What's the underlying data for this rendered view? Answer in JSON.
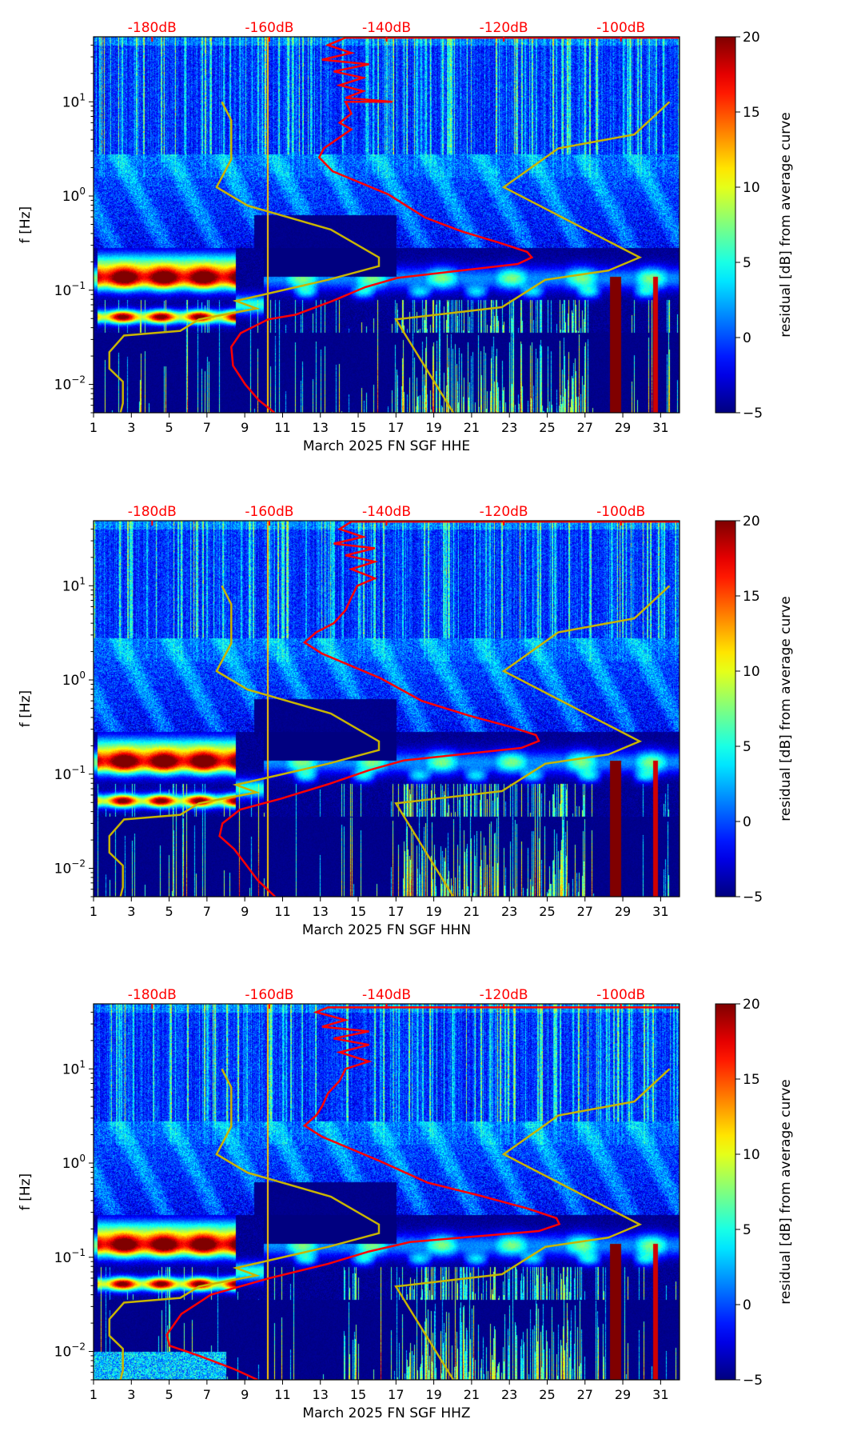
{
  "chart_data": [
    {
      "type": "heatmap",
      "xlabel": "March 2025 FN SGF  HHE",
      "ylabel": "f [Hz]",
      "colorbar_label": "residual [dB] from average curve",
      "x_ticks": [
        "1",
        "3",
        "5",
        "7",
        "9",
        "11",
        "13",
        "15",
        "17",
        "19",
        "21",
        "23",
        "25",
        "27",
        "29",
        "31"
      ],
      "xlim": [
        1,
        32
      ],
      "ylim_hz": [
        0.005,
        49
      ],
      "y_ticks": [
        {
          "base": "10",
          "exp": "1"
        },
        {
          "base": "10",
          "exp": "0"
        },
        {
          "base": "10",
          "exp": "−1"
        },
        {
          "base": "10",
          "exp": "−2"
        }
      ],
      "top_axis_ticks": [
        "-180dB",
        "-160dB",
        "-140dB",
        "-120dB",
        "-100dB"
      ],
      "top_axis_range_db": [
        -190,
        -90
      ],
      "colorbar_ticks": [
        "20",
        "15",
        "10",
        "5",
        "0",
        "−5"
      ],
      "colorbar_range": [
        -5,
        20
      ],
      "red_curve": [
        [
          -90,
          48
        ],
        [
          -147,
          48
        ],
        [
          -150,
          40
        ],
        [
          -146,
          33
        ],
        [
          -151,
          28
        ],
        [
          -143,
          25
        ],
        [
          -149,
          21
        ],
        [
          -144,
          18
        ],
        [
          -148,
          15
        ],
        [
          -144,
          13
        ],
        [
          -147,
          11
        ],
        [
          -139,
          10
        ],
        [
          -147,
          10
        ],
        [
          -146,
          7.5
        ],
        [
          -148,
          6
        ],
        [
          -146,
          5.1
        ],
        [
          -150.7,
          3.2
        ],
        [
          -151.5,
          2.57
        ],
        [
          -149.2,
          1.83
        ],
        [
          -139.7,
          1.04
        ],
        [
          -133.4,
          0.59
        ],
        [
          -127.1,
          0.42
        ],
        [
          -120.8,
          0.32
        ],
        [
          -116,
          0.255
        ],
        [
          -115.2,
          0.223
        ],
        [
          -117.6,
          0.19
        ],
        [
          -138.1,
          0.135
        ],
        [
          -143.6,
          0.108
        ],
        [
          -149.2,
          0.077
        ],
        [
          -155.5,
          0.055
        ],
        [
          -160.2,
          0.049
        ],
        [
          -164.9,
          0.035
        ],
        [
          -166.5,
          0.025
        ],
        [
          -166.2,
          0.0158
        ],
        [
          -164.1,
          0.01
        ],
        [
          -161.8,
          0.0068
        ],
        [
          -159.1,
          0.005
        ]
      ]
    },
    {
      "type": "heatmap",
      "xlabel": "March 2025 FN SGF  HHN",
      "ylabel": "f [Hz]",
      "colorbar_label": "residual [dB] from average curve",
      "x_ticks": [
        "1",
        "3",
        "5",
        "7",
        "9",
        "11",
        "13",
        "15",
        "17",
        "19",
        "21",
        "23",
        "25",
        "27",
        "29",
        "31"
      ],
      "xlim": [
        1,
        32
      ],
      "ylim_hz": [
        0.005,
        49
      ],
      "y_ticks": [
        {
          "base": "10",
          "exp": "1"
        },
        {
          "base": "10",
          "exp": "0"
        },
        {
          "base": "10",
          "exp": "−1"
        },
        {
          "base": "10",
          "exp": "−2"
        }
      ],
      "top_axis_ticks": [
        "-180dB",
        "-160dB",
        "-140dB",
        "-120dB",
        "-100dB"
      ],
      "top_axis_range_db": [
        -190,
        -90
      ],
      "colorbar_ticks": [
        "20",
        "15",
        "10",
        "5",
        "0",
        "−5"
      ],
      "colorbar_range": [
        -5,
        20
      ],
      "red_curve": [
        [
          -90,
          48
        ],
        [
          -146,
          48
        ],
        [
          -148,
          40
        ],
        [
          -144,
          33
        ],
        [
          -149,
          28
        ],
        [
          -142,
          25
        ],
        [
          -147,
          21
        ],
        [
          -142,
          18
        ],
        [
          -146,
          15
        ],
        [
          -142,
          12
        ],
        [
          -145,
          10
        ],
        [
          -146,
          7.5
        ],
        [
          -147,
          5.5
        ],
        [
          -149,
          4
        ],
        [
          -152,
          3.2
        ],
        [
          -154,
          2.5
        ],
        [
          -151,
          1.9
        ],
        [
          -141,
          1.04
        ],
        [
          -134,
          0.6
        ],
        [
          -126,
          0.42
        ],
        [
          -119,
          0.32
        ],
        [
          -114.5,
          0.26
        ],
        [
          -114,
          0.225
        ],
        [
          -117,
          0.19
        ],
        [
          -137,
          0.14
        ],
        [
          -143,
          0.11
        ],
        [
          -150,
          0.078
        ],
        [
          -158,
          0.055
        ],
        [
          -165,
          0.042
        ],
        [
          -168,
          0.03
        ],
        [
          -168.5,
          0.022
        ],
        [
          -166,
          0.016
        ],
        [
          -164,
          0.011
        ],
        [
          -162,
          0.0075
        ],
        [
          -159,
          0.005
        ]
      ]
    },
    {
      "type": "heatmap",
      "xlabel": "March 2025 FN SGF  HHZ",
      "ylabel": "f [Hz]",
      "colorbar_label": "residual [dB] from average curve",
      "x_ticks": [
        "1",
        "3",
        "5",
        "7",
        "9",
        "11",
        "13",
        "15",
        "17",
        "19",
        "21",
        "23",
        "25",
        "27",
        "29",
        "31"
      ],
      "xlim": [
        1,
        32
      ],
      "ylim_hz": [
        0.005,
        49
      ],
      "y_ticks": [
        {
          "base": "10",
          "exp": "1"
        },
        {
          "base": "10",
          "exp": "0"
        },
        {
          "base": "10",
          "exp": "−1"
        },
        {
          "base": "10",
          "exp": "−2"
        }
      ],
      "top_axis_ticks": [
        "-180dB",
        "-160dB",
        "-140dB",
        "-120dB",
        "-100dB"
      ],
      "top_axis_range_db": [
        -190,
        -90
      ],
      "colorbar_ticks": [
        "20",
        "15",
        "10",
        "5",
        "0",
        "−5"
      ],
      "colorbar_range": [
        -5,
        20
      ],
      "red_curve": [
        [
          -90,
          45
        ],
        [
          -150,
          45
        ],
        [
          -152,
          40
        ],
        [
          -147,
          33
        ],
        [
          -151,
          28
        ],
        [
          -143,
          25
        ],
        [
          -149,
          21
        ],
        [
          -143,
          18
        ],
        [
          -148,
          15
        ],
        [
          -143,
          12
        ],
        [
          -147,
          10
        ],
        [
          -148,
          7.5
        ],
        [
          -150,
          5.5
        ],
        [
          -151,
          4
        ],
        [
          -152,
          3.2
        ],
        [
          -154,
          2.5
        ],
        [
          -151,
          1.9
        ],
        [
          -141,
          1.04
        ],
        [
          -133,
          0.62
        ],
        [
          -124,
          0.45
        ],
        [
          -116,
          0.33
        ],
        [
          -111,
          0.26
        ],
        [
          -110.5,
          0.225
        ],
        [
          -114,
          0.19
        ],
        [
          -136,
          0.145
        ],
        [
          -143,
          0.115
        ],
        [
          -150,
          0.085
        ],
        [
          -160,
          0.06
        ],
        [
          -170,
          0.04
        ],
        [
          -175,
          0.025
        ],
        [
          -177.5,
          0.015
        ],
        [
          -177,
          0.0115
        ],
        [
          -172,
          0.009
        ],
        [
          -166,
          0.0065
        ],
        [
          -162,
          0.005
        ]
      ]
    }
  ],
  "reference_curves": {
    "nlnm": [
      [
        -168.1,
        10
      ],
      [
        -166.5,
        6.36
      ],
      [
        -166.5,
        2.45
      ],
      [
        -169,
        1.24
      ],
      [
        -163.7,
        0.79
      ],
      [
        -149.5,
        0.44
      ],
      [
        -141.3,
        0.223
      ],
      [
        -141.3,
        0.18
      ],
      [
        -150,
        0.129
      ],
      [
        -163.7,
        0.082
      ],
      [
        -165.7,
        0.077
      ],
      [
        -162.2,
        0.064
      ],
      [
        -172,
        0.049
      ],
      [
        -175.2,
        0.037
      ],
      [
        -184.8,
        0.033
      ],
      [
        -187.3,
        0.022
      ],
      [
        -187.3,
        0.0147
      ],
      [
        -185,
        0.0107
      ],
      [
        -185,
        0.0063
      ],
      [
        -185.4,
        0.005
      ]
    ],
    "nhnm": [
      [
        -91.7,
        10
      ],
      [
        -97.7,
        4.5
      ],
      [
        -110.7,
        3.2
      ],
      [
        -120,
        1.24
      ],
      [
        -96.8,
        0.223
      ],
      [
        -102.1,
        0.162
      ],
      [
        -112.9,
        0.129
      ],
      [
        -120.3,
        0.066
      ],
      [
        -138.4,
        0.049
      ],
      [
        -128.6,
        0.005
      ]
    ],
    "red_color": "#ff0000",
    "model_color": "#c8b400"
  }
}
